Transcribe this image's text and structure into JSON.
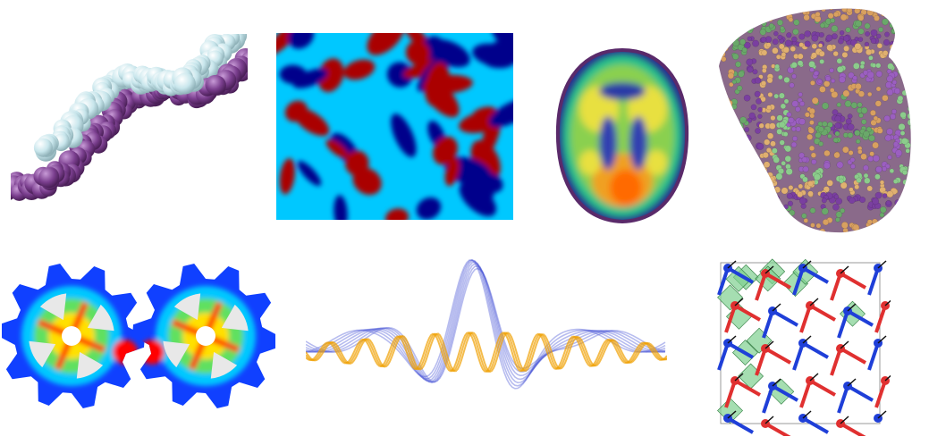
{
  "gallery": {
    "tiles": [
      {
        "subject": "dna-double-helix-spacefill",
        "colors": [
          "#7b3f8f",
          "#c8e6ec"
        ]
      },
      {
        "subject": "reaction-diffusion-pattern",
        "colors": [
          "#00008b",
          "#aa0000",
          "#00c0ff"
        ]
      },
      {
        "subject": "brain-scan-heatmap",
        "colors": [
          "#2a2a90",
          "#22c08a",
          "#e8e040",
          "#ff6a00"
        ]
      },
      {
        "subject": "particle-cylinder-cutaway",
        "colors": [
          "#7a3fa0",
          "#6aa86a",
          "#d8a060"
        ]
      },
      {
        "subject": "gear-stress-heatmap",
        "colors": [
          "#1040ff",
          "#00c8ff",
          "#ffe000",
          "#ff0000"
        ]
      },
      {
        "subject": "wave-interference-ribbons",
        "colors": [
          "#3040d0",
          "#f0a000"
        ]
      },
      {
        "subject": "crystal-lattice-polyhedra",
        "colors": [
          "#1f3fd8",
          "#e03030",
          "#7fd090"
        ]
      }
    ]
  }
}
